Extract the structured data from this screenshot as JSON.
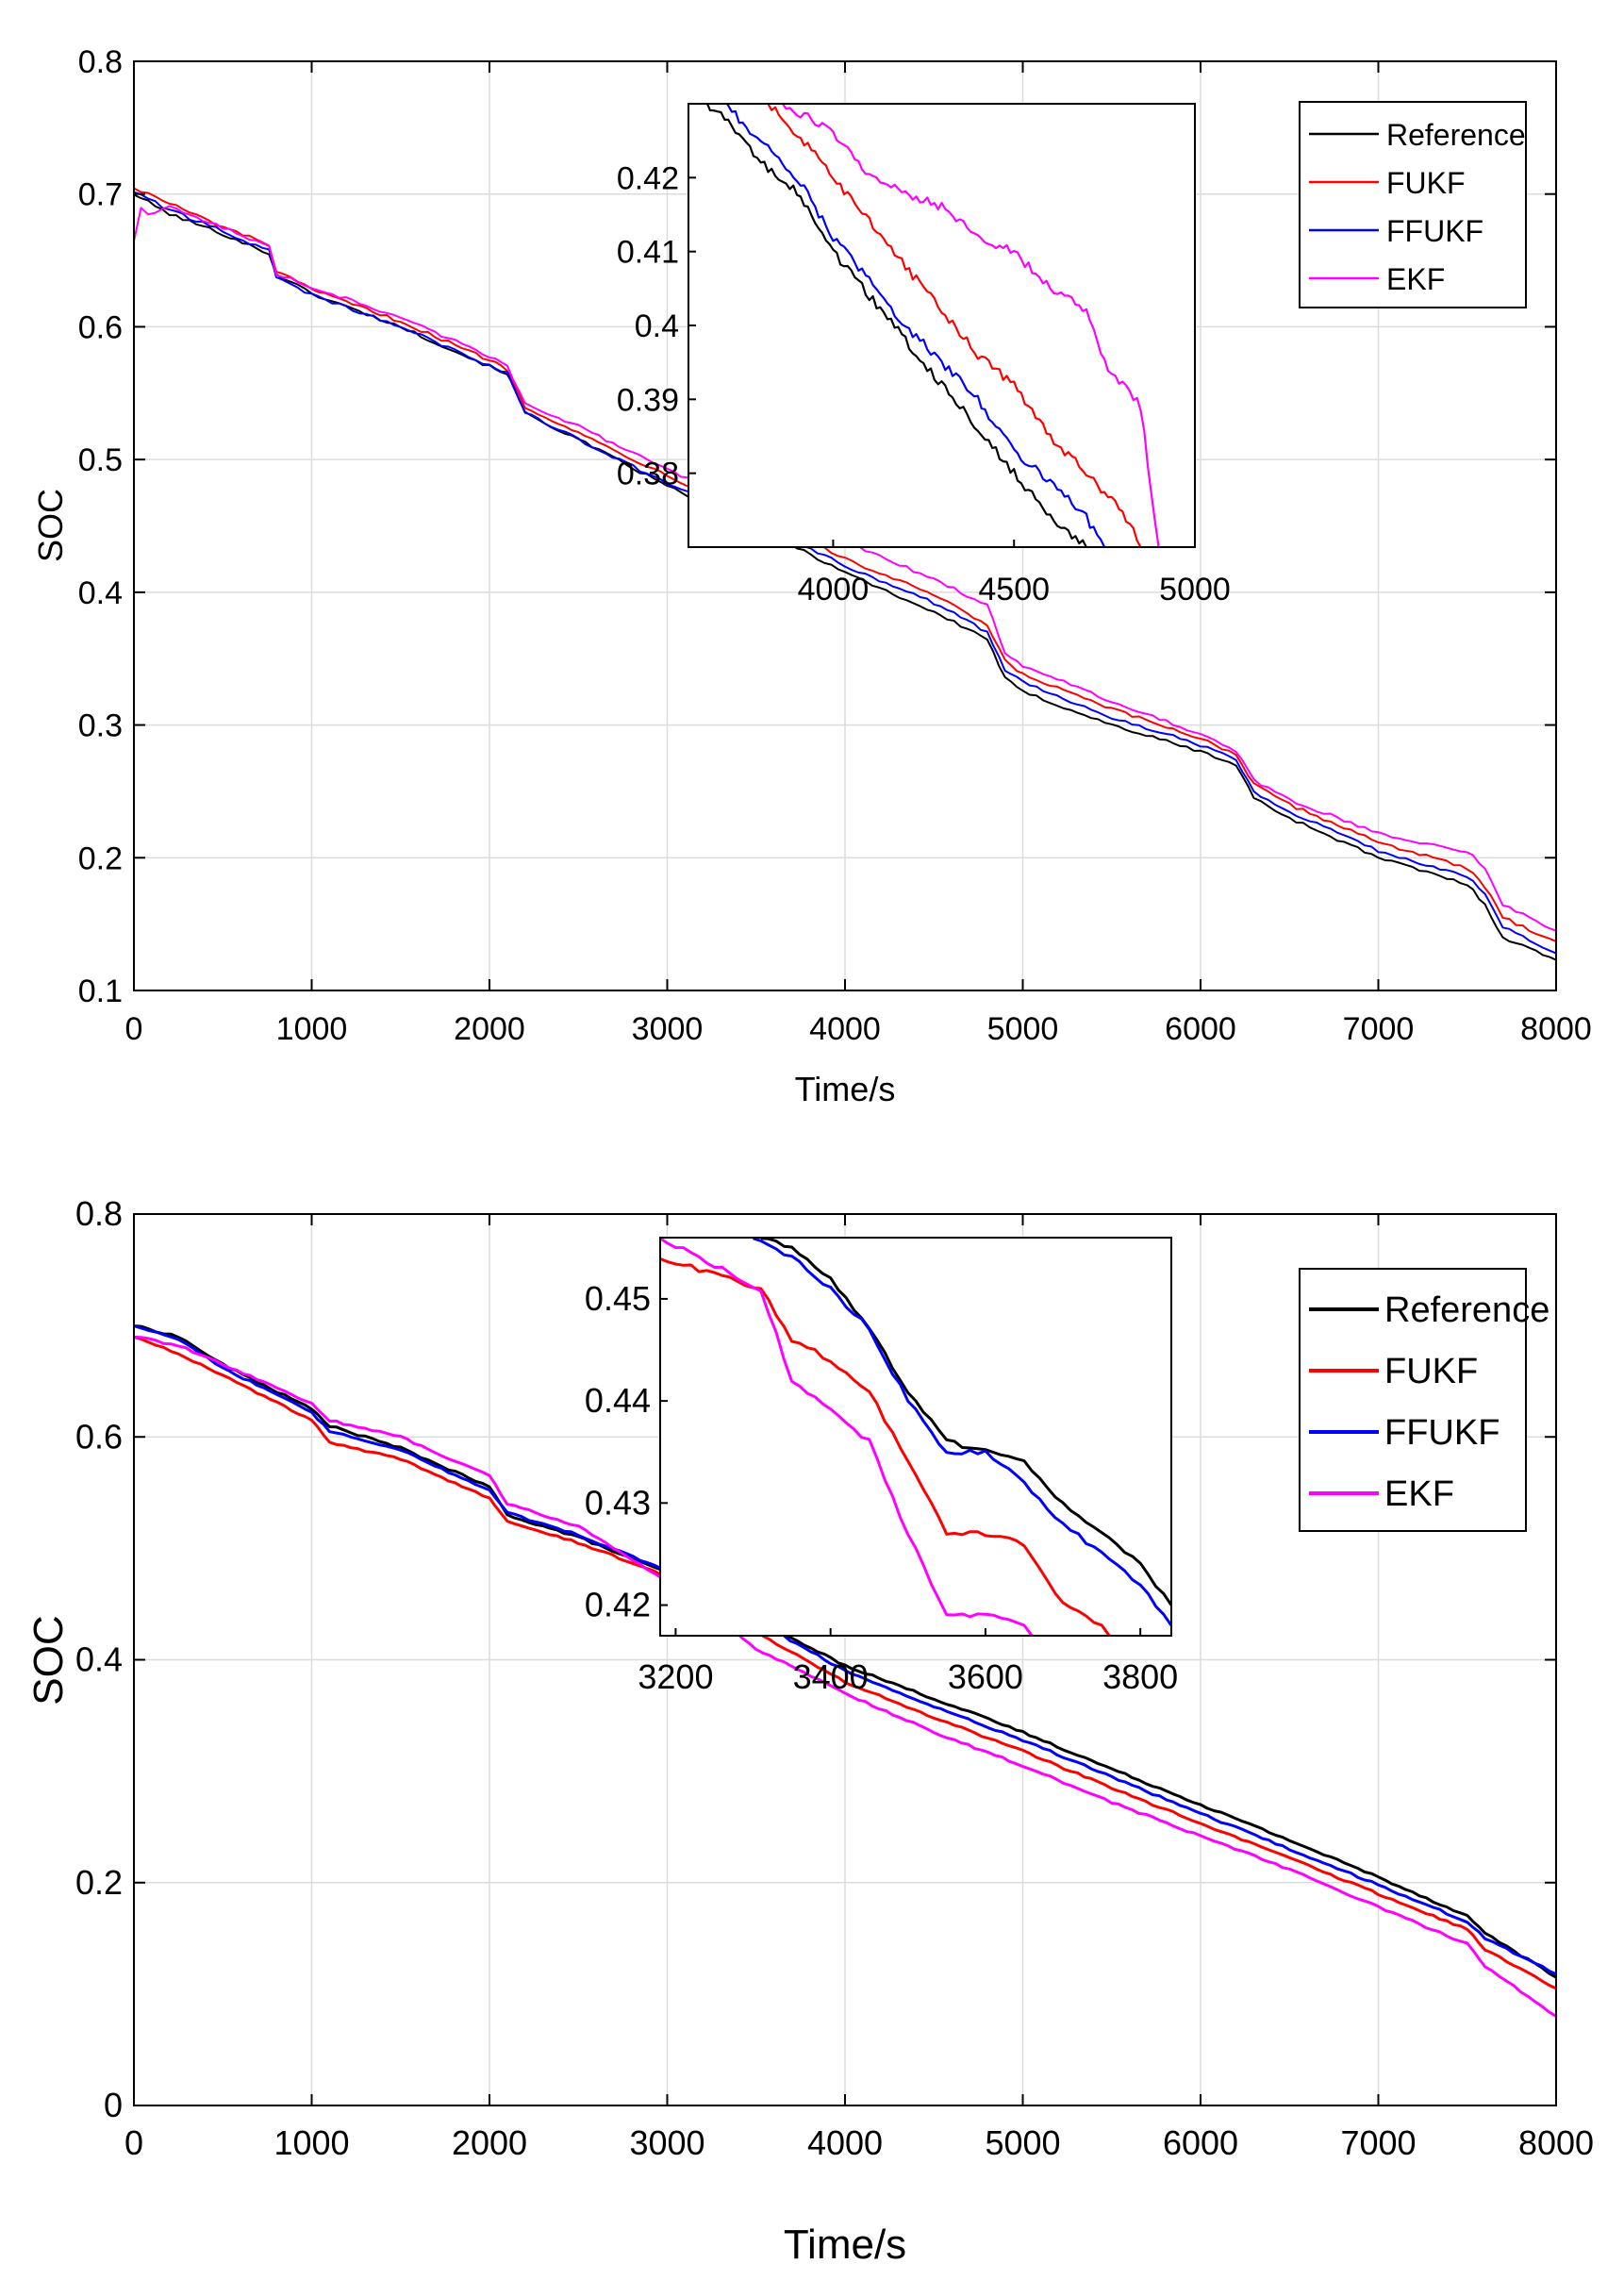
{
  "colors": {
    "Reference": "#000000",
    "FUKF": "#ff0000",
    "FFUKF": "#0000ff",
    "EKF": "#ff00ff"
  },
  "chart_data": [
    {
      "type": "line",
      "xlabel": "Time/s",
      "ylabel": "SOC",
      "xlim": [
        0,
        8000
      ],
      "ylim": [
        0.1,
        0.8
      ],
      "grid": true,
      "legend_position": "top-right",
      "xticks": [
        0,
        1000,
        2000,
        3000,
        4000,
        5000,
        6000,
        7000,
        8000
      ],
      "xtick_labels": [
        "0",
        "1000",
        "2000",
        "3000",
        "4000",
        "5000",
        "6000",
        "7000",
        "8000"
      ],
      "yticks": [
        0.1,
        0.2,
        0.3,
        0.4,
        0.5,
        0.6,
        0.7,
        0.8
      ],
      "ytick_labels": [
        "0.1",
        "0.2",
        "0.3",
        "0.4",
        "0.5",
        "0.6",
        "0.7",
        "0.8"
      ],
      "series": [
        {
          "name": "Reference",
          "x": [
            0,
            200,
            500,
            760,
            800,
            1000,
            1500,
            2000,
            2100,
            2200,
            2500,
            3000,
            3500,
            4000,
            4500,
            4800,
            4900,
            5000,
            5500,
            6000,
            6200,
            6300,
            6500,
            7000,
            7500,
            7600,
            7700,
            8000
          ],
          "y": [
            0.7,
            0.685,
            0.67,
            0.655,
            0.64,
            0.625,
            0.6,
            0.57,
            0.565,
            0.535,
            0.515,
            0.48,
            0.45,
            0.415,
            0.385,
            0.365,
            0.335,
            0.325,
            0.3,
            0.28,
            0.27,
            0.245,
            0.23,
            0.2,
            0.18,
            0.165,
            0.14,
            0.123
          ]
        },
        {
          "name": "FUKF",
          "x": [
            0,
            200,
            500,
            760,
            800,
            1000,
            1500,
            2000,
            2100,
            2200,
            2500,
            3000,
            3500,
            4000,
            4500,
            4800,
            4900,
            5000,
            5500,
            6000,
            6200,
            6300,
            6500,
            7000,
            7500,
            7600,
            7700,
            8000
          ],
          "y": [
            0.705,
            0.693,
            0.675,
            0.662,
            0.642,
            0.628,
            0.604,
            0.575,
            0.568,
            0.54,
            0.52,
            0.488,
            0.458,
            0.425,
            0.398,
            0.375,
            0.348,
            0.338,
            0.312,
            0.29,
            0.278,
            0.255,
            0.24,
            0.212,
            0.192,
            0.178,
            0.155,
            0.137
          ]
        },
        {
          "name": "FFUKF",
          "x": [
            0,
            200,
            500,
            760,
            800,
            1000,
            1500,
            2000,
            2100,
            2200,
            2500,
            3000,
            3500,
            4000,
            4500,
            4800,
            4900,
            5000,
            5500,
            6000,
            6200,
            6300,
            6500,
            7000,
            7500,
            7600,
            7700,
            8000
          ],
          "y": [
            0.702,
            0.688,
            0.672,
            0.657,
            0.638,
            0.624,
            0.6,
            0.571,
            0.565,
            0.536,
            0.515,
            0.482,
            0.452,
            0.42,
            0.392,
            0.37,
            0.342,
            0.332,
            0.306,
            0.285,
            0.274,
            0.25,
            0.235,
            0.205,
            0.186,
            0.172,
            0.148,
            0.128
          ]
        },
        {
          "name": "EKF",
          "x": [
            0,
            40,
            80,
            200,
            500,
            760,
            800,
            1000,
            1500,
            2000,
            2100,
            2200,
            2500,
            3000,
            3500,
            4000,
            4500,
            4800,
            4900,
            5000,
            5500,
            6000,
            6200,
            6300,
            6500,
            7000,
            7500,
            7600,
            7700,
            8000
          ],
          "y": [
            0.665,
            0.69,
            0.685,
            0.69,
            0.675,
            0.66,
            0.64,
            0.63,
            0.607,
            0.578,
            0.57,
            0.543,
            0.525,
            0.492,
            0.465,
            0.438,
            0.41,
            0.39,
            0.355,
            0.345,
            0.318,
            0.293,
            0.28,
            0.258,
            0.244,
            0.218,
            0.205,
            0.192,
            0.165,
            0.145
          ]
        }
      ],
      "inset": {
        "xlim": [
          3600,
          5000
        ],
        "ylim": [
          0.37,
          0.43
        ],
        "xticks": [
          4000,
          4500,
          5000
        ],
        "xtick_labels": [
          "4000",
          "4500",
          "5000"
        ],
        "yticks": [
          0.38,
          0.39,
          0.4,
          0.41,
          0.42
        ],
        "ytick_labels": [
          "0.38",
          "0.39",
          "0.4",
          "0.41",
          "0.42"
        ],
        "series": [
          {
            "name": "Reference",
            "x": [
              3600,
              3700,
              3800,
              3900,
              4000,
              4100,
              4200,
              4300,
              4400,
              4500,
              4600,
              4700
            ],
            "y": [
              0.432,
              0.428,
              0.422,
              0.418,
              0.41,
              0.404,
              0.398,
              0.392,
              0.386,
              0.38,
              0.374,
              0.37
            ]
          },
          {
            "name": "FUKF",
            "x": [
              3600,
              3800,
              3900,
              4000,
              4100,
              4200,
              4300,
              4400,
              4500,
              4600,
              4700,
              4800,
              4850
            ],
            "y": [
              0.44,
              0.431,
              0.426,
              0.42,
              0.414,
              0.408,
              0.402,
              0.396,
              0.392,
              0.385,
              0.38,
              0.375,
              0.37
            ]
          },
          {
            "name": "FFUKF",
            "x": [
              3600,
              3700,
              3800,
              3900,
              4000,
              4100,
              4200,
              4300,
              4400,
              4500,
              4600,
              4700,
              4750
            ],
            "y": [
              0.44,
              0.43,
              0.425,
              0.42,
              0.412,
              0.406,
              0.4,
              0.395,
              0.39,
              0.383,
              0.379,
              0.374,
              0.37
            ]
          },
          {
            "name": "EKF",
            "x": [
              3600,
              3800,
              4000,
              4100,
              4200,
              4300,
              4400,
              4500,
              4600,
              4700,
              4750,
              4800,
              4850,
              4900
            ],
            "y": [
              0.44,
              0.432,
              0.426,
              0.42,
              0.418,
              0.416,
              0.412,
              0.41,
              0.405,
              0.402,
              0.395,
              0.392,
              0.389,
              0.37
            ]
          }
        ]
      }
    },
    {
      "type": "line",
      "xlabel": "Time/s",
      "ylabel": "SOC",
      "xlim": [
        0,
        8000
      ],
      "ylim": [
        0,
        0.8
      ],
      "grid": true,
      "legend_position": "right",
      "xticks": [
        0,
        1000,
        2000,
        3000,
        4000,
        5000,
        6000,
        7000,
        8000
      ],
      "xtick_labels": [
        "0",
        "1000",
        "2000",
        "3000",
        "4000",
        "5000",
        "6000",
        "7000",
        "8000"
      ],
      "yticks": [
        0,
        0.2,
        0.4,
        0.6,
        0.8
      ],
      "ytick_labels": [
        "0",
        "0.2",
        "0.4",
        "0.6",
        "0.8"
      ],
      "series": [
        {
          "name": "Reference",
          "x": [
            0,
            250,
            500,
            1000,
            1100,
            1500,
            2000,
            2100,
            2500,
            3000,
            3500,
            4000,
            4500,
            5000,
            5500,
            6000,
            6500,
            7000,
            7500,
            7600,
            8000
          ],
          "y": [
            0.7,
            0.69,
            0.665,
            0.625,
            0.61,
            0.59,
            0.555,
            0.53,
            0.51,
            0.478,
            0.435,
            0.395,
            0.365,
            0.335,
            0.302,
            0.27,
            0.238,
            0.205,
            0.17,
            0.155,
            0.115
          ]
        },
        {
          "name": "FUKF",
          "x": [
            0,
            250,
            500,
            1000,
            1100,
            1500,
            2000,
            2100,
            2500,
            3000,
            3500,
            4000,
            4500,
            5000,
            5500,
            6000,
            6500,
            7000,
            7500,
            7600,
            8000
          ],
          "y": [
            0.69,
            0.675,
            0.655,
            0.615,
            0.595,
            0.58,
            0.545,
            0.525,
            0.505,
            0.475,
            0.425,
            0.38,
            0.348,
            0.318,
            0.285,
            0.253,
            0.222,
            0.19,
            0.158,
            0.14,
            0.105
          ]
        },
        {
          "name": "FFUKF",
          "x": [
            0,
            250,
            500,
            1000,
            1100,
            1500,
            2000,
            2100,
            2500,
            3000,
            3500,
            4000,
            4500,
            5000,
            5500,
            6000,
            6500,
            7000,
            7500,
            7600,
            8000
          ],
          "y": [
            0.7,
            0.688,
            0.662,
            0.622,
            0.605,
            0.588,
            0.552,
            0.532,
            0.512,
            0.48,
            0.435,
            0.39,
            0.358,
            0.328,
            0.295,
            0.262,
            0.23,
            0.198,
            0.165,
            0.15,
            0.118
          ]
        },
        {
          "name": "EKF",
          "x": [
            0,
            250,
            500,
            1000,
            1100,
            1500,
            2000,
            2100,
            2500,
            3000,
            3500,
            4000,
            4500,
            5000,
            5500,
            6000,
            6500,
            7000,
            7500,
            7600,
            8000
          ],
          "y": [
            0.69,
            0.682,
            0.665,
            0.63,
            0.615,
            0.6,
            0.565,
            0.54,
            0.52,
            0.47,
            0.41,
            0.37,
            0.335,
            0.305,
            0.272,
            0.242,
            0.212,
            0.178,
            0.145,
            0.125,
            0.08
          ]
        }
      ],
      "inset": {
        "xlim": [
          3180,
          3840
        ],
        "ylim": [
          0.417,
          0.456
        ],
        "xticks": [
          3200,
          3400,
          3600,
          3800
        ],
        "xtick_labels": [
          "3200",
          "3400",
          "3600",
          "3800"
        ],
        "yticks": [
          0.42,
          0.43,
          0.44,
          0.45
        ],
        "ytick_labels": [
          "0.42",
          "0.43",
          "0.44",
          "0.45"
        ],
        "series": [
          {
            "name": "Reference",
            "x": [
              3310,
              3350,
              3400,
              3450,
              3500,
              3550,
              3600,
              3650,
              3700,
              3750,
              3800,
              3840
            ],
            "y": [
              0.456,
              0.455,
              0.452,
              0.447,
              0.441,
              0.436,
              0.435,
              0.434,
              0.43,
              0.427,
              0.424,
              0.42
            ]
          },
          {
            "name": "FUKF",
            "x": [
              3180,
              3310,
              3350,
              3400,
              3450,
              3500,
              3550,
              3600,
              3650,
              3700,
              3750,
              3760
            ],
            "y": [
              0.454,
              0.451,
              0.446,
              0.444,
              0.441,
              0.434,
              0.427,
              0.427,
              0.426,
              0.42,
              0.418,
              0.417
            ]
          },
          {
            "name": "FFUKF",
            "x": [
              3300,
              3350,
              3400,
              3450,
              3500,
              3550,
              3600,
              3650,
              3700,
              3750,
              3800,
              3840
            ],
            "y": [
              0.456,
              0.454,
              0.451,
              0.447,
              0.44,
              0.435,
              0.435,
              0.432,
              0.428,
              0.425,
              0.422,
              0.418
            ]
          },
          {
            "name": "EKF",
            "x": [
              3180,
              3310,
              3350,
              3400,
              3450,
              3500,
              3550,
              3600,
              3650,
              3660
            ],
            "y": [
              0.456,
              0.451,
              0.442,
              0.439,
              0.436,
              0.427,
              0.419,
              0.419,
              0.418,
              0.417
            ]
          }
        ]
      }
    }
  ]
}
